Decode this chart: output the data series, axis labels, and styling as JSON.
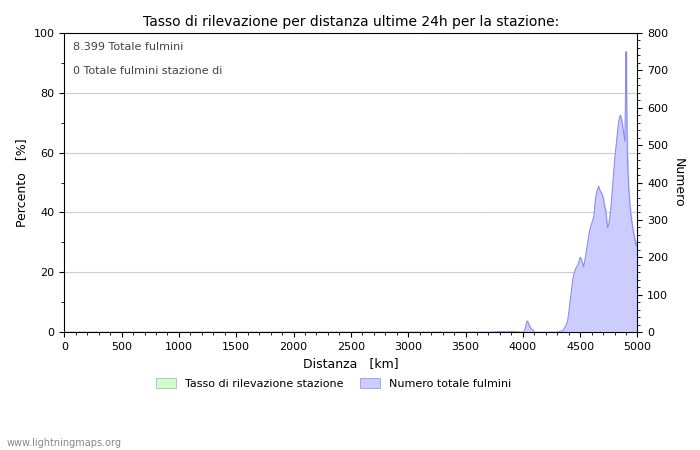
{
  "title": "Tasso di rilevazione per distanza ultime 24h per la stazione:",
  "xlabel": "Distanza   [km]",
  "ylabel_left": "Percento   [%]",
  "ylabel_right": "Numero",
  "annotation_lines": [
    "8.399 Totale fulmini",
    "0 Totale fulmini stazione di"
  ],
  "xlim": [
    0,
    5000
  ],
  "ylim_left": [
    0,
    100
  ],
  "ylim_right": [
    0,
    800
  ],
  "xticks": [
    0,
    500,
    1000,
    1500,
    2000,
    2500,
    3000,
    3500,
    4000,
    4500,
    5000
  ],
  "yticks_left": [
    0,
    20,
    40,
    60,
    80,
    100
  ],
  "yticks_right": [
    0,
    100,
    200,
    300,
    400,
    500,
    600,
    700,
    800
  ],
  "bg_color": "#ffffff",
  "plot_bg_color": "#ffffff",
  "grid_color": "#cccccc",
  "line_color": "#8888ee",
  "fill_color": "#ccccff",
  "green_fill_color": "#ccffcc",
  "legend_label_green": "Tasso di rilevazione stazione",
  "legend_label_blue": "Numero totale fulmini",
  "watermark": "www.lightningmaps.org",
  "data_x": [
    0,
    3500,
    3600,
    3700,
    3800,
    3850,
    3900,
    3950,
    4000,
    4010,
    4020,
    4030,
    4040,
    4050,
    4060,
    4070,
    4080,
    4090,
    4100,
    4150,
    4200,
    4250,
    4300,
    4350,
    4360,
    4370,
    4380,
    4390,
    4400,
    4410,
    4420,
    4430,
    4440,
    4450,
    4460,
    4470,
    4480,
    4490,
    4500,
    4510,
    4520,
    4530,
    4540,
    4550,
    4560,
    4570,
    4580,
    4590,
    4600,
    4610,
    4620,
    4630,
    4640,
    4650,
    4660,
    4670,
    4680,
    4690,
    4700,
    4710,
    4720,
    4730,
    4740,
    4750,
    4760,
    4770,
    4780,
    4790,
    4800,
    4810,
    4820,
    4830,
    4840,
    4850,
    4860,
    4870,
    4880,
    4890,
    4900,
    4910,
    4920,
    4930,
    4940,
    4950,
    4960,
    4970,
    4980,
    4990,
    5000
  ],
  "data_y": [
    0,
    0,
    0,
    0,
    2,
    1,
    2,
    1,
    0,
    3,
    8,
    25,
    30,
    22,
    15,
    10,
    8,
    5,
    0,
    0,
    0,
    0,
    0,
    5,
    10,
    15,
    20,
    30,
    50,
    80,
    100,
    130,
    150,
    160,
    170,
    175,
    180,
    190,
    200,
    195,
    185,
    175,
    190,
    210,
    230,
    250,
    270,
    280,
    290,
    300,
    310,
    350,
    370,
    380,
    390,
    380,
    375,
    370,
    360,
    340,
    330,
    300,
    280,
    290,
    310,
    340,
    380,
    420,
    460,
    490,
    520,
    550,
    570,
    580,
    570,
    550,
    530,
    510,
    750,
    490,
    400,
    350,
    320,
    295,
    275,
    260,
    240,
    230,
    250
  ]
}
